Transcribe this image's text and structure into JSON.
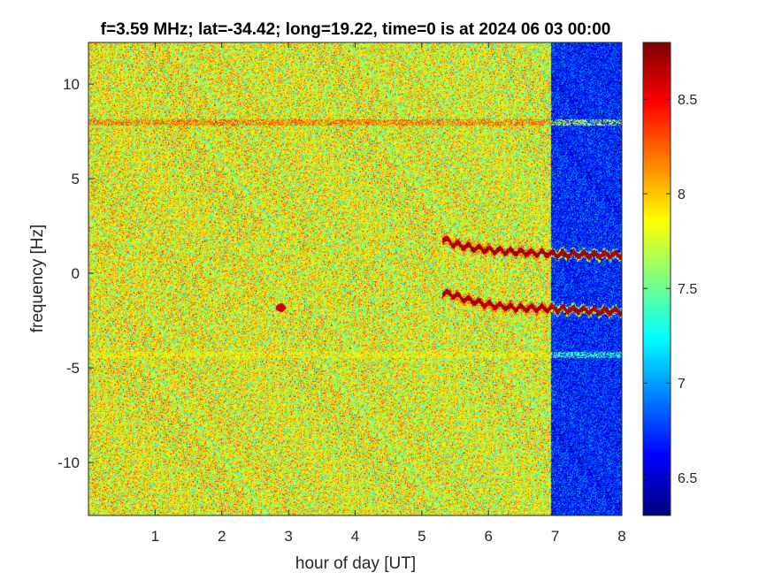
{
  "chart_data": {
    "type": "heatmap",
    "title": "f=3.59 MHz;  lat=-34.42; long=19.22, time=0 is at 2024 06 03 00:00",
    "xlabel": "hour of day [UT]",
    "ylabel": "frequency [Hz]",
    "xlim": [
      0,
      8
    ],
    "ylim": [
      -12.8,
      12.2
    ],
    "xticks": [
      1,
      2,
      3,
      4,
      5,
      6,
      7,
      8
    ],
    "yticks": [
      10,
      5,
      0,
      -5,
      -10
    ],
    "colorbar": {
      "colormap": "jet",
      "clim": [
        6.3,
        8.8
      ],
      "ticks": [
        8.5,
        8,
        7.5,
        7,
        6.5
      ]
    },
    "background_level": 7.85,
    "low_noise_region": {
      "x_start": 6.93,
      "x_end": 8.0,
      "level": 6.7
    },
    "features": [
      {
        "kind": "horizontal-line",
        "y": 8.0,
        "x_start": 0,
        "x_end": 8,
        "level": 8.5
      },
      {
        "kind": "horizontal-line",
        "y": -4.3,
        "x_start": 0,
        "x_end": 8,
        "level": 7.9
      },
      {
        "kind": "trace",
        "level": 8.7,
        "points": [
          [
            5.3,
            1.9
          ],
          [
            5.45,
            1.6
          ],
          [
            5.7,
            1.4
          ],
          [
            6.0,
            1.25
          ],
          [
            6.4,
            1.15
          ],
          [
            6.93,
            1.05
          ],
          [
            7.5,
            1.0
          ],
          [
            8.0,
            1.0
          ]
        ]
      },
      {
        "kind": "trace",
        "level": 8.7,
        "points": [
          [
            5.3,
            -1.0
          ],
          [
            5.45,
            -1.1
          ],
          [
            5.7,
            -1.4
          ],
          [
            6.0,
            -1.65
          ],
          [
            6.4,
            -1.8
          ],
          [
            6.93,
            -1.85
          ],
          [
            7.5,
            -1.95
          ],
          [
            8.0,
            -2.0
          ]
        ]
      },
      {
        "kind": "spot",
        "x": 2.88,
        "y": -1.8,
        "level": 8.6
      }
    ]
  }
}
